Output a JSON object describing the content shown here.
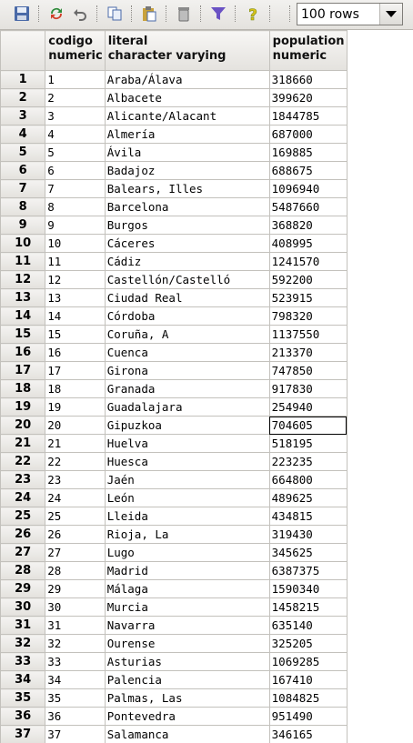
{
  "toolbar": {
    "buttons": [
      {
        "name": "save-icon",
        "color": "#4a6aa8"
      },
      {
        "name": "refresh-icon",
        "color": "#2e8b3a"
      },
      {
        "name": "undo-icon",
        "color": "#6a6a6a"
      },
      {
        "name": "copy-icon",
        "color": "#4a6aa8"
      },
      {
        "name": "paste-icon",
        "color": "#c9a23c"
      },
      {
        "name": "delete-icon",
        "color": "#8a8a8a"
      },
      {
        "name": "filter-icon",
        "color": "#6a52c4"
      },
      {
        "name": "help-icon",
        "color": "#d8c21a"
      }
    ],
    "rows_select": {
      "value": "100 rows"
    }
  },
  "columns": [
    {
      "name": "codigo",
      "type": "numeric"
    },
    {
      "name": "literal",
      "type": "character varying"
    },
    {
      "name": "population",
      "type": "numeric"
    }
  ],
  "rows": [
    [
      "1",
      "1",
      "Araba/Álava",
      "318660"
    ],
    [
      "2",
      "2",
      "Albacete",
      "399620"
    ],
    [
      "3",
      "3",
      "Alicante/Alacant",
      "1844785"
    ],
    [
      "4",
      "4",
      "Almería",
      "687000"
    ],
    [
      "5",
      "5",
      "Ávila",
      "169885"
    ],
    [
      "6",
      "6",
      "Badajoz",
      "688675"
    ],
    [
      "7",
      "7",
      "Balears, Illes",
      "1096940"
    ],
    [
      "8",
      "8",
      "Barcelona",
      "5487660"
    ],
    [
      "9",
      "9",
      "Burgos",
      "368820"
    ],
    [
      "10",
      "10",
      "Cáceres",
      "408995"
    ],
    [
      "11",
      "11",
      "Cádiz",
      "1241570"
    ],
    [
      "12",
      "12",
      "Castellón/Castelló",
      "592200"
    ],
    [
      "13",
      "13",
      "Ciudad Real",
      "523915"
    ],
    [
      "14",
      "14",
      "Córdoba",
      "798320"
    ],
    [
      "15",
      "15",
      "Coruña, A",
      "1137550"
    ],
    [
      "16",
      "16",
      "Cuenca",
      "213370"
    ],
    [
      "17",
      "17",
      "Girona",
      "747850"
    ],
    [
      "18",
      "18",
      "Granada",
      "917830"
    ],
    [
      "19",
      "19",
      "Guadalajara",
      "254940"
    ],
    [
      "20",
      "20",
      "Gipuzkoa",
      "704605"
    ],
    [
      "21",
      "21",
      "Huelva",
      "518195"
    ],
    [
      "22",
      "22",
      "Huesca",
      "223235"
    ],
    [
      "23",
      "23",
      "Jaén",
      "664800"
    ],
    [
      "24",
      "24",
      "León",
      "489625"
    ],
    [
      "25",
      "25",
      "Lleida",
      "434815"
    ],
    [
      "26",
      "26",
      "Rioja, La",
      "319430"
    ],
    [
      "27",
      "27",
      "Lugo",
      "345625"
    ],
    [
      "28",
      "28",
      "Madrid",
      "6387375"
    ],
    [
      "29",
      "29",
      "Málaga",
      "1590340"
    ],
    [
      "30",
      "30",
      "Murcia",
      "1458215"
    ],
    [
      "31",
      "31",
      "Navarra",
      "635140"
    ],
    [
      "32",
      "32",
      "Ourense",
      "325205"
    ],
    [
      "33",
      "33",
      "Asturias",
      "1069285"
    ],
    [
      "34",
      "34",
      "Palencia",
      "167410"
    ],
    [
      "35",
      "35",
      "Palmas, Las",
      "1084825"
    ],
    [
      "36",
      "36",
      "Pontevedra",
      "951490"
    ],
    [
      "37",
      "37",
      "Salamanca",
      "346165"
    ]
  ],
  "selected_cell": {
    "row": "20",
    "column": "population"
  }
}
